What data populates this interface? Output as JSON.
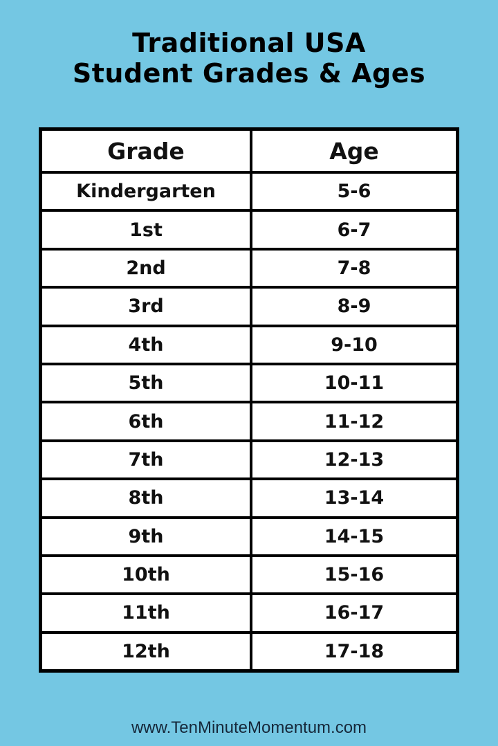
{
  "title": [
    "Traditional USA",
    "Student Grades & Ages"
  ],
  "table": {
    "headers": [
      "Grade",
      "Age"
    ],
    "rows": [
      [
        "Kindergarten",
        "5-6"
      ],
      [
        "1st",
        "6-7"
      ],
      [
        "2nd",
        "7-8"
      ],
      [
        "3rd",
        "8-9"
      ],
      [
        "4th",
        "9-10"
      ],
      [
        "5th",
        "10-11"
      ],
      [
        "6th",
        "11-12"
      ],
      [
        "7th",
        "12-13"
      ],
      [
        "8th",
        "13-14"
      ],
      [
        "9th",
        "14-15"
      ],
      [
        "10th",
        "15-16"
      ],
      [
        "11th",
        "16-17"
      ],
      [
        "12th",
        "17-18"
      ]
    ]
  },
  "footer": "www.TenMinuteMomentum.com",
  "colors": {
    "background": "#74c7e3",
    "table_border": "#000000",
    "cell": "#ffffff"
  }
}
